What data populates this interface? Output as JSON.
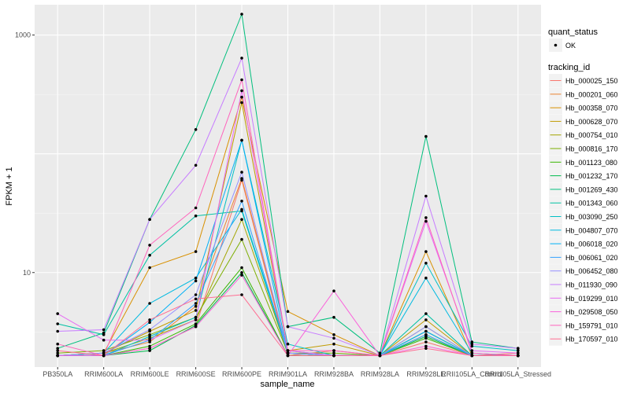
{
  "chart_data": {
    "type": "line",
    "xlabel": "sample_name",
    "ylabel": "FPKM + 1",
    "y_scale": "log10",
    "y_ticks": [
      10,
      1000
    ],
    "y_tick_labels": [
      "10",
      "1000"
    ],
    "ylim": [
      1.6,
      1800
    ],
    "categories": [
      "PB350LA",
      "RRIM600LA",
      "RRIM600LE",
      "RRIM600SE",
      "RRIM600PE",
      "RRIM901LA",
      "RRIM928BA",
      "RRIM928LA",
      "RRIM928LE",
      "RRII105LA_Control",
      "RRII105LA_Stressed"
    ],
    "grid": true,
    "legend_position": "right",
    "legend_quant": {
      "title": "quant_status",
      "items": [
        {
          "label": "OK"
        }
      ]
    },
    "legend_title": "tracking_id",
    "series": [
      {
        "name": "Hb_000025_150",
        "color": "#F8766D",
        "values": [
          2.0,
          2.0,
          2.3,
          3.5,
          60,
          2.0,
          2.2,
          2.0,
          2.6,
          2.0,
          2.1
        ]
      },
      {
        "name": "Hb_000201_060",
        "color": "#EA8331",
        "values": [
          2.0,
          2.1,
          2.6,
          5.2,
          62,
          2.1,
          2.0,
          2.0,
          3.0,
          2.0,
          2.0
        ]
      },
      {
        "name": "Hb_000358_070",
        "color": "#D89000",
        "values": [
          2.0,
          2.1,
          11,
          15,
          300,
          4.7,
          3.0,
          2.0,
          15,
          2.0,
          2.0
        ]
      },
      {
        "name": "Hb_000628_070",
        "color": "#C09B00",
        "values": [
          2.0,
          2.1,
          3.2,
          4.8,
          270,
          2.2,
          2.5,
          2.0,
          4.0,
          2.0,
          2.0
        ]
      },
      {
        "name": "Hb_000754_010",
        "color": "#A3A500",
        "values": [
          2.0,
          2.1,
          2.8,
          4.0,
          28,
          2.1,
          2.0,
          2.0,
          3.5,
          2.0,
          2.0
        ]
      },
      {
        "name": "Hb_000816_170",
        "color": "#7CAE00",
        "values": [
          2.1,
          2.2,
          3.0,
          4.2,
          19,
          2.1,
          2.1,
          2.0,
          3.2,
          2.0,
          2.0
        ]
      },
      {
        "name": "Hb_001123_080",
        "color": "#39B600",
        "values": [
          2.0,
          2.0,
          2.4,
          3.7,
          11,
          2.0,
          2.0,
          2.0,
          2.8,
          2.0,
          2.0
        ]
      },
      {
        "name": "Hb_001232_170",
        "color": "#00BB4E",
        "values": [
          2.0,
          2.0,
          2.2,
          3.6,
          10,
          2.0,
          2.0,
          2.0,
          2.9,
          2.0,
          2.0
        ]
      },
      {
        "name": "Hb_001269_430",
        "color": "#00BF7D",
        "values": [
          2.3,
          3.1,
          28,
          160,
          1500,
          3.5,
          4.2,
          2.1,
          140,
          2.6,
          2.3
        ]
      },
      {
        "name": "Hb_001343_060",
        "color": "#00C1A3",
        "values": [
          3.7,
          3.0,
          14,
          30,
          33,
          2.1,
          2.0,
          2.0,
          4.5,
          2.0,
          2.0
        ]
      },
      {
        "name": "Hb_003090_250",
        "color": "#00BFC4",
        "values": [
          2.0,
          2.0,
          2.9,
          4.2,
          130,
          2.5,
          2.0,
          2.0,
          12,
          2.4,
          2.2
        ]
      },
      {
        "name": "Hb_004807_070",
        "color": "#00BAE0",
        "values": [
          2.0,
          2.1,
          5.5,
          9.0,
          34,
          2.2,
          2.0,
          2.0,
          9.0,
          2.1,
          2.0
        ]
      },
      {
        "name": "Hb_006018_020",
        "color": "#00B0F6",
        "values": [
          2.0,
          2.0,
          3.8,
          8.5,
          130,
          2.1,
          2.0,
          2.0,
          3.2,
          2.0,
          2.0
        ]
      },
      {
        "name": "Hb_006061_020",
        "color": "#35A2FF",
        "values": [
          2.0,
          2.0,
          2.7,
          5.5,
          40,
          2.1,
          2.0,
          2.0,
          3.0,
          2.0,
          2.0
        ]
      },
      {
        "name": "Hb_006452_080",
        "color": "#9590FF",
        "values": [
          2.0,
          2.1,
          3.3,
          6.5,
          70,
          2.1,
          2.0,
          2.0,
          3.5,
          2.0,
          2.0
        ]
      },
      {
        "name": "Hb_011930_090",
        "color": "#C77CFF",
        "values": [
          3.2,
          3.3,
          28,
          80,
          640,
          3.5,
          2.8,
          2.0,
          44,
          2.5,
          2.3
        ]
      },
      {
        "name": "Hb_019299_010",
        "color": "#E76BF3",
        "values": [
          4.5,
          2.7,
          2.7,
          4.0,
          340,
          2.2,
          2.0,
          2.0,
          27,
          2.2,
          2.1
        ]
      },
      {
        "name": "Hb_029508_050",
        "color": "#FA62DB",
        "values": [
          2.0,
          2.0,
          2.3,
          3.5,
          9.5,
          2.0,
          7.0,
          2.0,
          2.4,
          2.0,
          2.0
        ]
      },
      {
        "name": "Hb_159791_010",
        "color": "#FF62BC",
        "values": [
          2.5,
          2.0,
          17,
          35,
          420,
          2.2,
          2.2,
          2.0,
          29,
          2.1,
          2.0
        ]
      },
      {
        "name": "Hb_170597_010",
        "color": "#FF6C91",
        "values": [
          2.2,
          2.0,
          4.0,
          6.0,
          6.5,
          2.0,
          2.0,
          2.0,
          2.3,
          2.0,
          2.0
        ]
      }
    ]
  }
}
